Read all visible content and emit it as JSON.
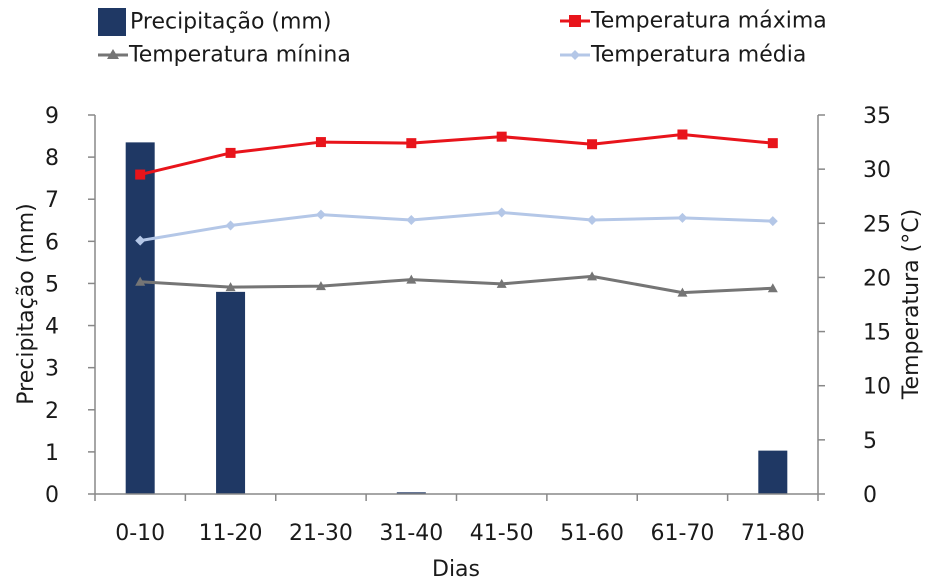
{
  "chart_data": {
    "type": "bar+line",
    "categories": [
      "0-10",
      "11-20",
      "21-30",
      "31-40",
      "41-50",
      "51-60",
      "61-70",
      "71-80"
    ],
    "xlabel": "Dias",
    "y_left": {
      "label": "Precipitação (mm)",
      "lim": [
        0,
        9
      ],
      "ticks": [
        0,
        1,
        2,
        3,
        4,
        5,
        6,
        7,
        8,
        9
      ]
    },
    "y_right": {
      "label": "Temperatura (°C)",
      "lim": [
        0,
        35
      ],
      "ticks": [
        0,
        5,
        10,
        15,
        20,
        25,
        30,
        35
      ]
    },
    "grid": false,
    "legend_position": "top",
    "series": [
      {
        "name": "Precipitação (mm)",
        "kind": "bar",
        "axis": "left",
        "color": "#1f3864",
        "values": [
          8.35,
          4.8,
          0,
          0.04,
          0,
          0,
          0,
          1.03
        ]
      },
      {
        "name": "Temperatura máxima",
        "kind": "line",
        "axis": "right",
        "color": "#e8141b",
        "marker": "square",
        "values": [
          29.5,
          31.5,
          32.5,
          32.4,
          33.0,
          32.3,
          33.2,
          32.4
        ]
      },
      {
        "name": "Temperatura mínina",
        "kind": "line",
        "axis": "right",
        "color": "#757575",
        "marker": "triangle",
        "values": [
          19.6,
          19.1,
          19.2,
          19.8,
          19.4,
          20.1,
          18.6,
          19.0
        ]
      },
      {
        "name": "Temperatura média",
        "kind": "line",
        "axis": "right",
        "color": "#b4c7e7",
        "marker": "diamond",
        "values": [
          23.4,
          24.8,
          25.8,
          25.3,
          26.0,
          25.3,
          25.5,
          25.2
        ]
      }
    ]
  }
}
